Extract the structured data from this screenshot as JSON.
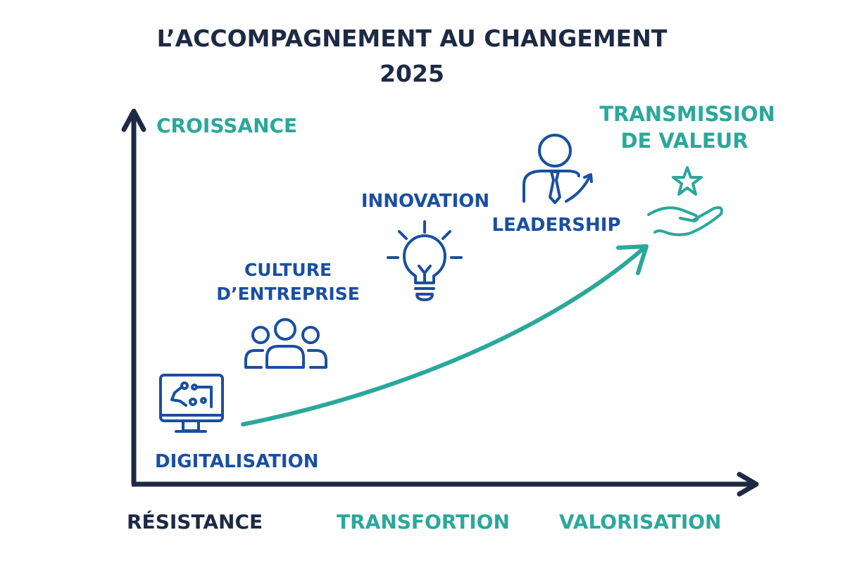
{
  "title": {
    "line1": "L’ACCOMPAGNEMENT AU CHANGEMENT",
    "line2": "2025"
  },
  "axes": {
    "y_label": "CROISSANCE",
    "x_labels": [
      "RÉSISTANCE",
      "TRANSFORTION",
      "VALORISATION"
    ]
  },
  "stages": [
    {
      "label": "DIGITALISATION",
      "icon": "computer-circuit-icon"
    },
    {
      "label_line1": "CULTURE",
      "label_line2": "D’ENTREPRISE",
      "icon": "people-group-icon"
    },
    {
      "label": "INNOVATION",
      "icon": "lightbulb-icon"
    },
    {
      "label": "LEADERSHIP",
      "icon": "businessman-arrow-icon"
    },
    {
      "label_line1": "TRANSMISSION",
      "label_line2": "DE VALEUR",
      "icon": "hand-star-icon"
    }
  ],
  "colors": {
    "navy": "#1e2a44",
    "teal": "#2aa89a",
    "blue": "#1a4fa0"
  }
}
